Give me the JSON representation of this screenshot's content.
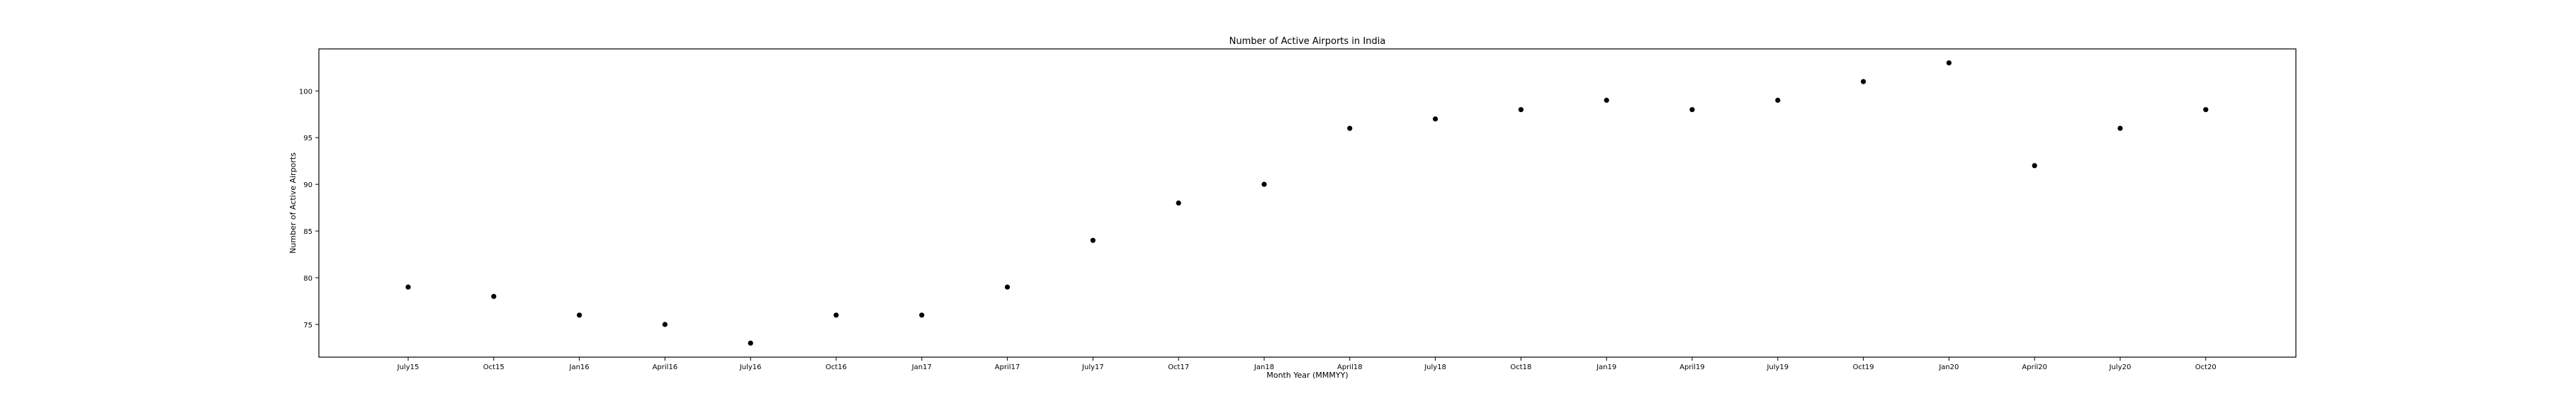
{
  "chart_data": {
    "type": "scatter",
    "title": "Number of Active Airports in India",
    "xlabel": "Month Year (MMMYY)",
    "ylabel": "Number of Active Airports",
    "categories": [
      "July15",
      "Oct15",
      "Jan16",
      "April16",
      "July16",
      "Oct16",
      "Jan17",
      "April17",
      "July17",
      "Oct17",
      "Jan18",
      "April18",
      "July18",
      "Oct18",
      "Jan19",
      "April19",
      "July19",
      "Oct19",
      "Jan20",
      "April20",
      "July20",
      "Oct20"
    ],
    "series": [
      {
        "values": [
          79,
          78,
          76,
          75,
          73,
          76,
          76,
          79,
          84,
          88,
          90,
          96,
          97,
          98,
          99,
          98,
          99,
          101,
          103,
          92,
          96,
          98
        ],
        "color": "#000000"
      }
    ],
    "yticks": [
      75,
      80,
      85,
      90,
      95,
      100
    ],
    "ylim": [
      71.5,
      104.5
    ],
    "grid": false,
    "legend": "none"
  }
}
